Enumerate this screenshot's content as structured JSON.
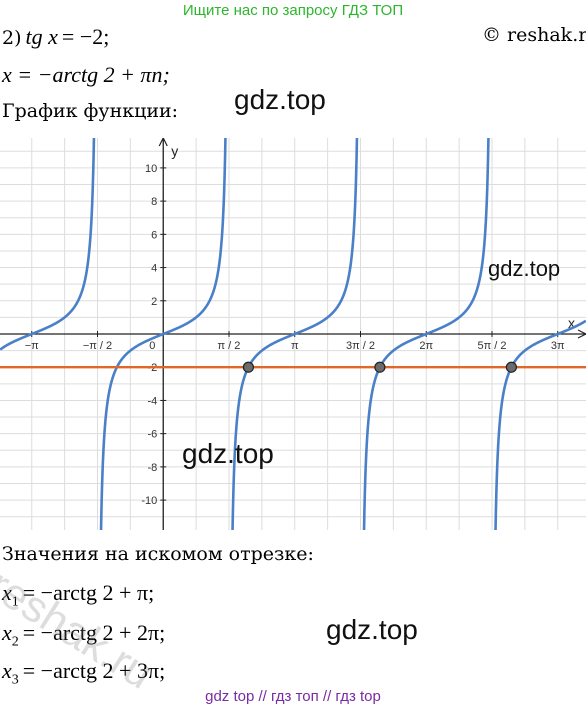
{
  "banner": "Ищите нас по запросу ГДЗ ТОП",
  "copyright": "© reshak.ru",
  "task": {
    "number": "2)",
    "equation_lhs": "tg x",
    "equation_rhs": "= −2;",
    "solution": "x = −arctg 2 + πn;",
    "graph_label": "График функции:"
  },
  "watermarks": [
    "gdz.top",
    "gdz.top",
    "gdz.top",
    "gdz.top"
  ],
  "reshak_watermark": "reshak.ru",
  "chart_data": {
    "type": "line",
    "series": [
      {
        "name": "",
        "function": "tan(x)",
        "color": "#4a80c7"
      },
      {
        "name": "",
        "function": "y = -2",
        "color": "#e0672a"
      }
    ],
    "points": [
      {
        "x": "π − arctg 2",
        "x_value": 2.0344,
        "y": -2
      },
      {
        "x": "2π − arctg 2",
        "x_value": 5.176,
        "y": -2
      },
      {
        "x": "3π − arctg 2",
        "x_value": 8.3176,
        "y": -2
      }
    ],
    "xlim": [
      -3.9,
      10.1
    ],
    "ylim": [
      -11.8,
      11.8
    ],
    "x_ticks": [
      "−π",
      "−π / 2",
      "0",
      "π / 2",
      "π",
      "3π / 2",
      "2π",
      "5π / 2",
      "3π"
    ],
    "y_ticks": [
      "10",
      "8",
      "6",
      "4",
      "2",
      "-2",
      "-4",
      "-6",
      "-8",
      "-10"
    ],
    "xlabel": "x",
    "ylabel": "y",
    "grid": true,
    "tick_color": "#333333",
    "grid_color": "#dddddd"
  },
  "answer": {
    "heading": "Значения на искомом отрезке:",
    "x1": "= −arctg 2 + π;",
    "x2": "= −arctg 2 + 2π;",
    "x3": "= −arctg 2 + 3π;"
  },
  "footer": "gdz top  //  гдз топ  //  гдз top"
}
